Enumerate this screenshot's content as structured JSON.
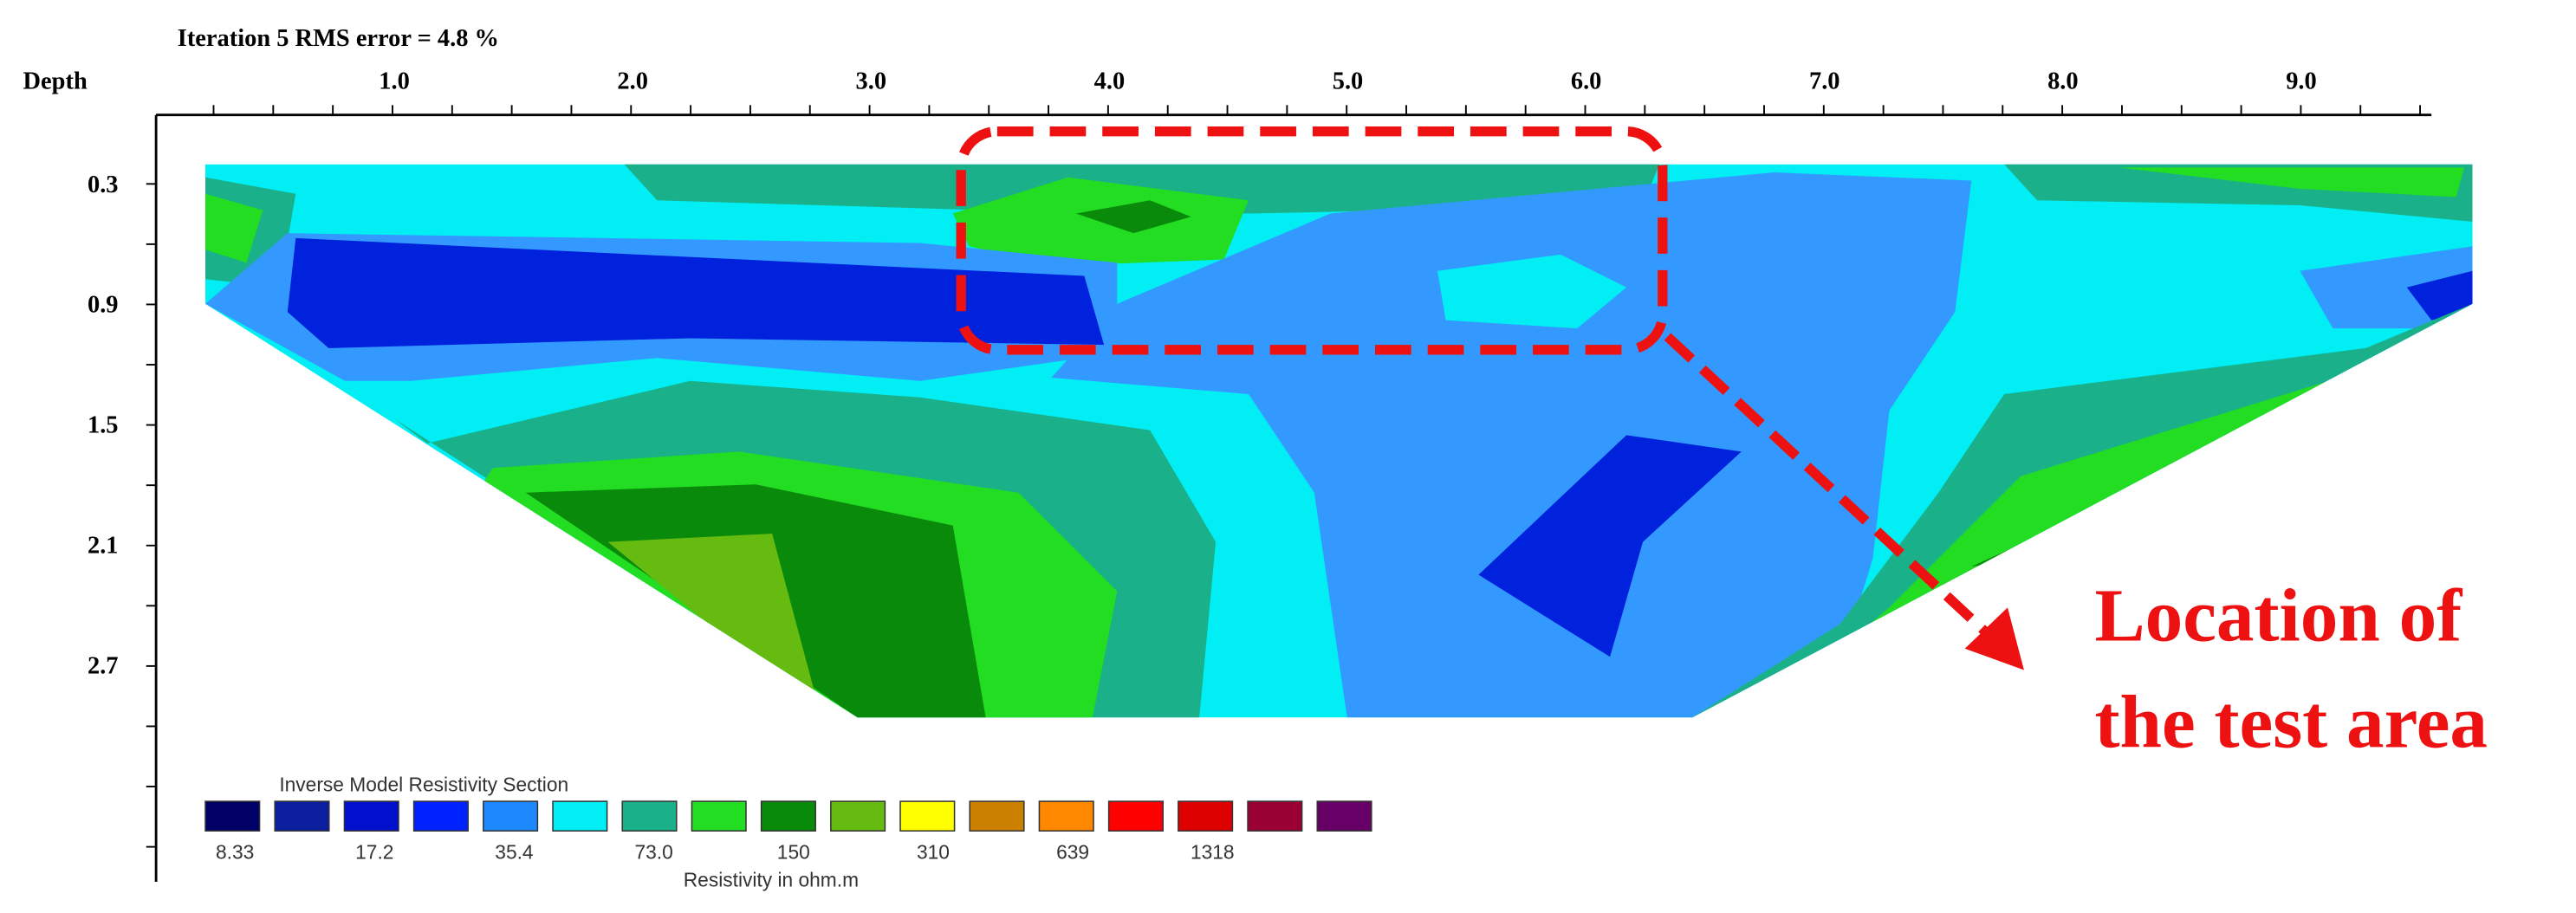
{
  "title": "Iteration 5 RMS error = 4.8 %",
  "depth_label": "Depth",
  "x_ticks": [
    "1.0",
    "2.0",
    "3.0",
    "4.0",
    "5.0",
    "6.0",
    "7.0",
    "8.0",
    "9.0"
  ],
  "depth_ticks": [
    "0.3",
    "0.9",
    "1.5",
    "2.1",
    "2.7"
  ],
  "legend": {
    "title": "Inverse Model Resistivity Section",
    "labels": [
      "8.33",
      "17.2",
      "35.4",
      "73.0",
      "150",
      "310",
      "639",
      "1318"
    ],
    "unit": "Resistivity in ohm.m"
  },
  "annotation": [
    "Location of",
    "the test area"
  ]
}
